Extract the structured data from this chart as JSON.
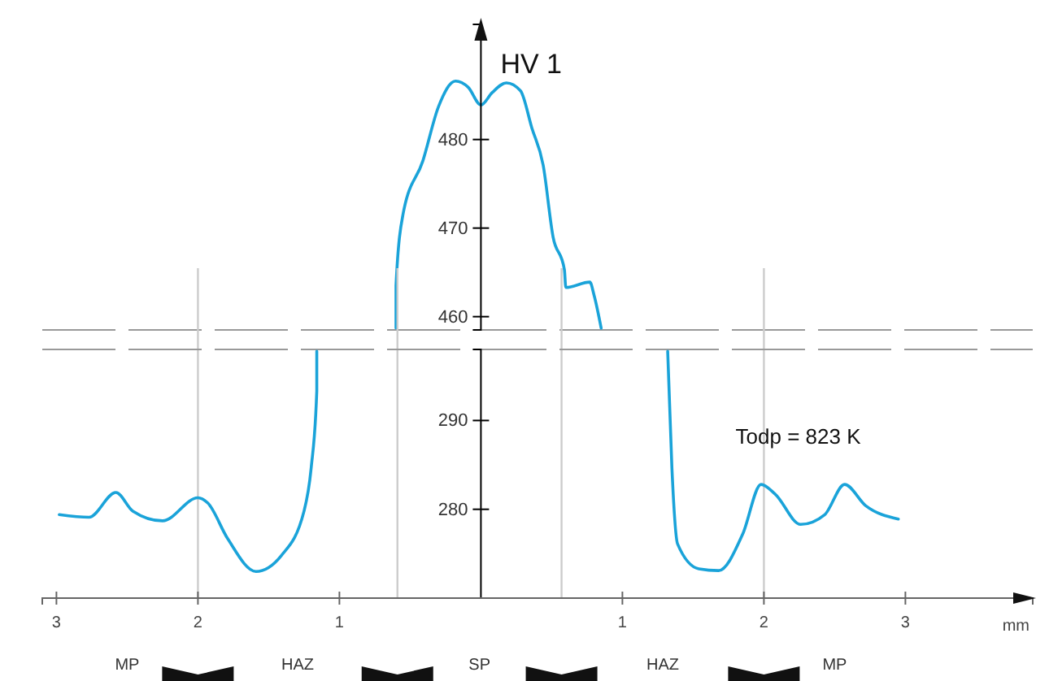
{
  "chart_data": [
    {
      "type": "line",
      "ylabel": "HV 1",
      "xlim": [
        -3.1,
        3.9
      ],
      "ylim": [
        458.5,
        493
      ],
      "yticks": [
        460,
        470,
        480
      ],
      "tick_labels": "y",
      "x": [
        -0.6,
        -0.6,
        -0.55,
        -0.41,
        -0.3,
        -0.18,
        -0.09,
        0,
        0.08,
        0.18,
        0.28,
        0.36,
        0.44,
        0.51,
        0.59,
        0.6,
        0.77,
        0.8,
        0.85
      ],
      "series": [
        {
          "color": "#1aa3d9",
          "values": [
            458.7,
            463.5,
            471.6,
            477.6,
            483.7,
            486.6,
            485.9,
            483.9,
            485.3,
            486.4,
            485.5,
            481.3,
            477.1,
            469,
            465.3,
            463.3,
            463.9,
            462.4,
            458.7
          ]
        }
      ]
    },
    {
      "type": "line",
      "xlabel": "mm",
      "xlim": [
        -3.1,
        3.9
      ],
      "ylim": [
        270,
        298
      ],
      "yticks": [
        280,
        290
      ],
      "xticks": [
        {
          "value": -3,
          "label": "3"
        },
        {
          "value": -2,
          "label": "2"
        },
        {
          "value": -1,
          "label": "1"
        },
        {
          "value": 1,
          "label": "1"
        },
        {
          "value": 2,
          "label": "2"
        },
        {
          "value": 3,
          "label": "3"
        }
      ],
      "x": [
        -2.98,
        -2.77,
        -2.58,
        -2.46,
        -2.25,
        -2.0,
        -1.93,
        -1.79,
        -1.59,
        -1.41,
        -1.25,
        -1.2,
        -1.16,
        -1.16,
        0,
        1.32,
        1.35,
        1.39,
        1.54,
        1.68,
        1.85,
        1.98,
        2.08,
        2.26,
        2.43,
        2.57,
        2.72,
        2.95
      ],
      "series": [
        {
          "color": "#1aa3d9",
          "values": [
            279.4,
            279.1,
            281.9,
            279.8,
            278.7,
            281.3,
            280.7,
            276.7,
            273,
            274.8,
            279.8,
            284.6,
            293.3,
            297.8,
            null,
            297.8,
            284.6,
            276.1,
            273.3,
            273.1,
            277.2,
            282.8,
            281.7,
            278.3,
            279.4,
            282.8,
            280.4,
            278.9
          ]
        }
      ],
      "ref_lines": [
        {
          "axis": "x",
          "value": -2,
          "color": "#cccccc"
        },
        {
          "axis": "x",
          "value": -0.59,
          "color": "#cccccc"
        },
        {
          "axis": "x",
          "value": 0.57,
          "color": "#cccccc"
        },
        {
          "axis": "x",
          "value": 2,
          "color": "#cccccc"
        }
      ],
      "annotations": [
        "Todp = 823 K",
        "MP",
        "HAZ",
        "SP",
        "HAZ",
        "MP"
      ]
    }
  ]
}
